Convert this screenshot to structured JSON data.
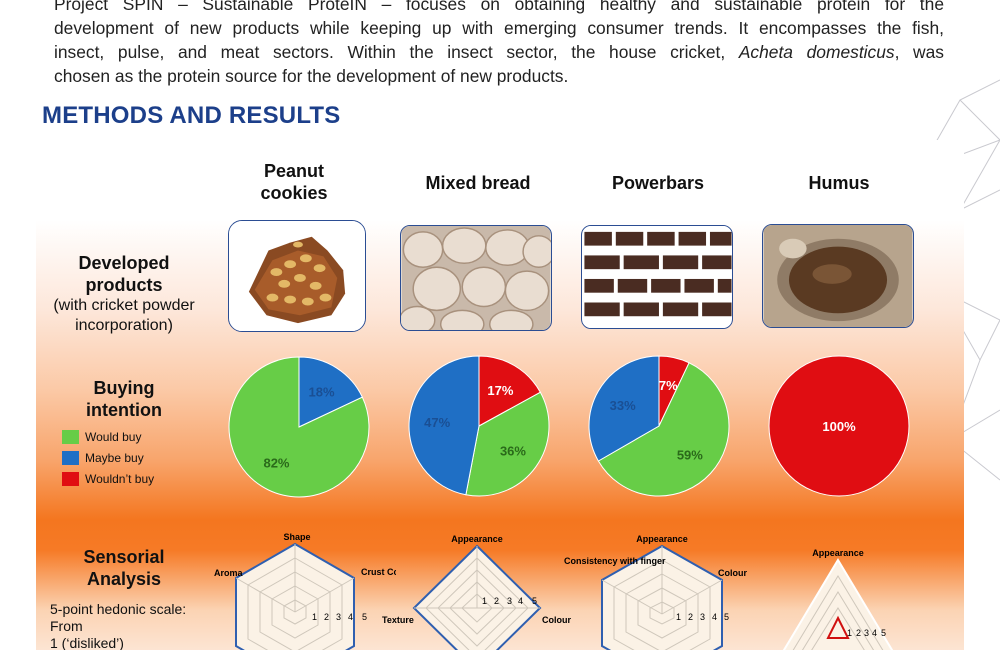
{
  "intro": {
    "lines": [
      "Project SPIN – Sustainable ProteIN – focuses on obtaining healthy and sustainable protein for the",
      "development of new products while keeping up with emerging consumer trends. It encompasses the fish,",
      "insect, pulse, and meat sectors. Within the insect sector, the house cricket,"
    ],
    "species": "Acheta domesticus",
    "line3_end": ", was",
    "line4": "chosen as the protein source for the development of new products."
  },
  "section_title": "METHODS AND RESULTS",
  "columns": [
    {
      "name": "Peanut cookies",
      "line1": "Peanut",
      "line2": "cookies"
    },
    {
      "name": "Mixed bread"
    },
    {
      "name": "Powerbars"
    },
    {
      "name": "Humus"
    }
  ],
  "rows": {
    "developed": {
      "title1": "Developed",
      "title2": "products",
      "sub1": "(with cricket powder",
      "sub2": "incorporation)"
    },
    "buying": {
      "title1": "Buying",
      "title2": "intention"
    },
    "sensorial": {
      "title1": "Sensorial",
      "title2": "Analysis",
      "desc1": "5-point hedonic scale:",
      "desc2": "From",
      "desc3": "1 (‘disliked’)"
    }
  },
  "legend": [
    {
      "label": "Would buy",
      "color": "#67cd47"
    },
    {
      "label": "Maybe buy",
      "color": "#1f6fc5"
    },
    {
      "label": "Wouldn’t buy",
      "color": "#e00d12"
    }
  ],
  "chart_data": [
    {
      "type": "pie",
      "title": "Peanut cookies",
      "categories": [
        "Would buy",
        "Maybe buy",
        "Wouldn’t buy"
      ],
      "values": [
        82,
        18,
        0
      ],
      "labels": [
        "82%",
        "18%",
        ""
      ]
    },
    {
      "type": "pie",
      "title": "Mixed bread",
      "categories": [
        "Would buy",
        "Maybe buy",
        "Wouldn’t buy"
      ],
      "values": [
        36,
        47,
        17
      ],
      "labels": [
        "36%",
        "47%",
        "17%"
      ]
    },
    {
      "type": "pie",
      "title": "Powerbars",
      "categories": [
        "Would buy",
        "Maybe buy",
        "Wouldn’t buy"
      ],
      "values": [
        59,
        33,
        7
      ],
      "labels": [
        "59%",
        "33%",
        "7%"
      ]
    },
    {
      "type": "pie",
      "title": "Humus",
      "categories": [
        "Would buy",
        "Maybe buy",
        "Wouldn’t buy"
      ],
      "values": [
        0,
        0,
        100
      ],
      "labels": [
        "",
        "",
        "100%"
      ]
    },
    {
      "type": "radar",
      "title": "Peanut cookies",
      "axes": [
        "Shape",
        "Crust Colour",
        "",
        "",
        "",
        "Aroma"
      ],
      "scale": [
        1,
        2,
        3,
        4,
        5
      ]
    },
    {
      "type": "radar",
      "title": "Mixed bread",
      "axes": [
        "Appearance",
        "Colour",
        "",
        "Texture"
      ],
      "scale": [
        1,
        2,
        3,
        4,
        5
      ]
    },
    {
      "type": "radar",
      "title": "Powerbars",
      "axes": [
        "Appearance",
        "Colour",
        "",
        "",
        "",
        "Consistency with finger"
      ],
      "scale": [
        1,
        2,
        3,
        4,
        5
      ]
    },
    {
      "type": "radar",
      "title": "Humus",
      "axes": [
        "Appearance",
        "",
        ""
      ],
      "scale": [
        1,
        2,
        3,
        4,
        5
      ]
    }
  ],
  "colors": {
    "heading": "#1c3f8a",
    "frame": "#2b4d93",
    "accent": "#f4761f"
  }
}
